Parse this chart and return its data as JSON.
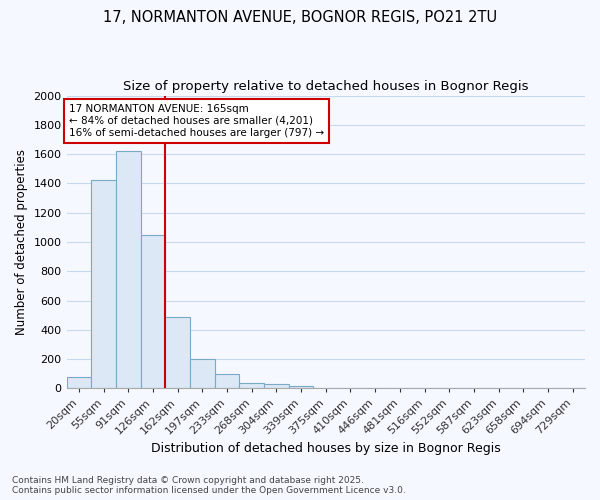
{
  "title": "17, NORMANTON AVENUE, BOGNOR REGIS, PO21 2TU",
  "subtitle": "Size of property relative to detached houses in Bognor Regis",
  "xlabel": "Distribution of detached houses by size in Bognor Regis",
  "ylabel": "Number of detached properties",
  "bar_values": [
    80,
    1420,
    1620,
    1050,
    490,
    200,
    100,
    40,
    30,
    20,
    0,
    0,
    0,
    0,
    0,
    0,
    0,
    0,
    0,
    0,
    0
  ],
  "bin_labels": [
    "20sqm",
    "55sqm",
    "91sqm",
    "126sqm",
    "162sqm",
    "197sqm",
    "233sqm",
    "268sqm",
    "304sqm",
    "339sqm",
    "375sqm",
    "410sqm",
    "446sqm",
    "481sqm",
    "516sqm",
    "552sqm",
    "587sqm",
    "623sqm",
    "658sqm",
    "694sqm",
    "729sqm"
  ],
  "bar_color": "#dce8f5",
  "bar_edge_color": "#7aaac8",
  "red_line_bin_index": 4,
  "annotation_title": "17 NORMANTON AVENUE: 165sqm",
  "annotation_line1": "← 84% of detached houses are smaller (4,201)",
  "annotation_line2": "16% of semi-detached houses are larger (797) →",
  "annotation_box_facecolor": "#ffffff",
  "annotation_box_edgecolor": "#cc0000",
  "red_line_color": "#cc0000",
  "ylim": [
    0,
    2000
  ],
  "yticks": [
    0,
    200,
    400,
    600,
    800,
    1000,
    1200,
    1400,
    1600,
    1800,
    2000
  ],
  "footnote1": "Contains HM Land Registry data © Crown copyright and database right 2025.",
  "footnote2": "Contains public sector information licensed under the Open Government Licence v3.0.",
  "bg_color": "#f5f8ff",
  "grid_color": "#c8d8f0",
  "title_fontsize": 10.5,
  "subtitle_fontsize": 9.5,
  "ylabel_fontsize": 8.5,
  "xlabel_fontsize": 9,
  "tick_fontsize": 8,
  "footnote_fontsize": 6.5
}
